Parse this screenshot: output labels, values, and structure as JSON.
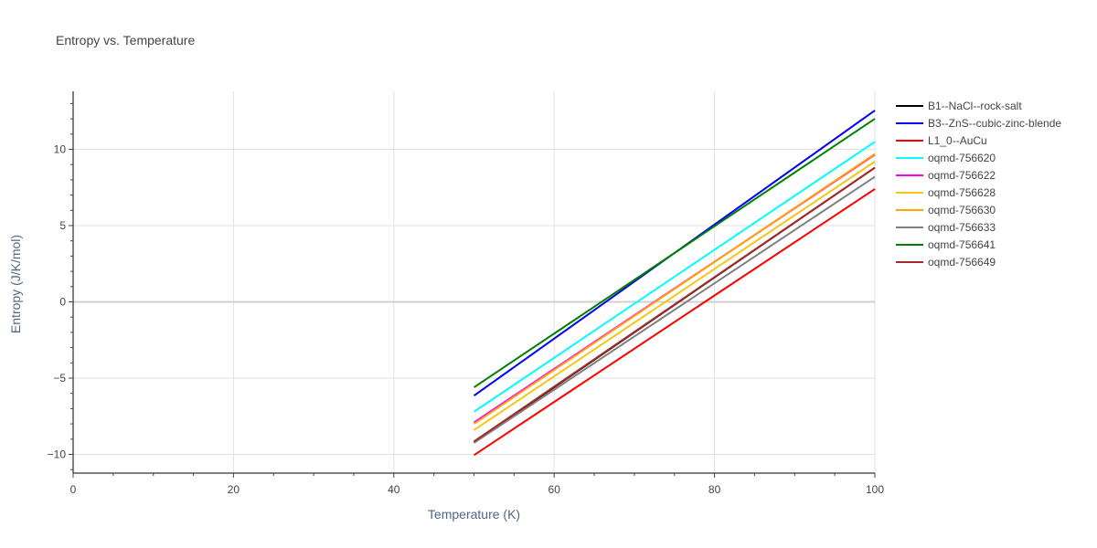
{
  "chart_data": {
    "type": "line",
    "title": "Entropy vs. Temperature",
    "xlabel": "Temperature (K)",
    "ylabel": "Entropy (J/K/mol)",
    "xlim": [
      0,
      100
    ],
    "ylim": [
      -11.2,
      13.8
    ],
    "x_ticks": [
      0,
      20,
      40,
      60,
      80,
      100
    ],
    "y_ticks": [
      -10,
      -5,
      0,
      5,
      10
    ],
    "y_tick_labels": [
      "−10",
      "−5",
      "0",
      "5",
      "10"
    ],
    "grid": true,
    "legend_position": "right",
    "x": [
      50,
      100
    ],
    "series": [
      {
        "name": "B1--NaCl--rock-salt",
        "color": "#000000",
        "values": [
          -9.2,
          8.8
        ]
      },
      {
        "name": "B3--ZnS--cubic-zinc-blende",
        "color": "#0000ff",
        "values": [
          -6.15,
          12.55
        ]
      },
      {
        "name": "L1_0--AuCu",
        "color": "#ff0000",
        "values": [
          -10.05,
          7.4
        ]
      },
      {
        "name": "oqmd-756620",
        "color": "#00ffff",
        "values": [
          -7.2,
          10.5
        ]
      },
      {
        "name": "oqmd-756622",
        "color": "#ff00ff",
        "values": [
          -7.9,
          9.65
        ]
      },
      {
        "name": "oqmd-756628",
        "color": "#f5c518",
        "values": [
          -8.4,
          9.2
        ]
      },
      {
        "name": "oqmd-756630",
        "color": "#ffa500",
        "values": [
          -8.0,
          9.7
        ]
      },
      {
        "name": "oqmd-756633",
        "color": "#808080",
        "values": [
          -9.25,
          8.2
        ]
      },
      {
        "name": "oqmd-756641",
        "color": "#008000",
        "values": [
          -5.6,
          12.0
        ]
      },
      {
        "name": "oqmd-756649",
        "color": "#a52a2a",
        "values": [
          -9.15,
          8.8
        ]
      }
    ]
  }
}
